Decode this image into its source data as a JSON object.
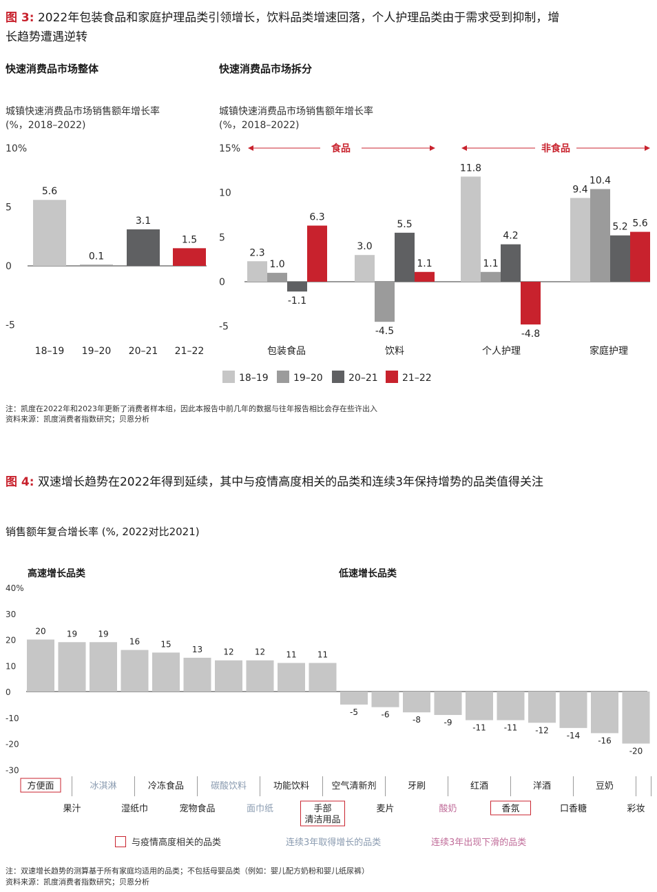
{
  "fig3": {
    "title_num": "图 3:",
    "title_line1": "2022年包装食品和家庭护理品类引领增长，饮料品类增速回落，个人护理品类由于需求受到抑制，增",
    "title_line2": "长趋势遭遇逆转",
    "left_heading": "快速消费品市场整体",
    "right_heading": "快速消费品市场拆分",
    "left_ylabel1": "城镇快速消费品市场销售额年增长率",
    "left_ylabel2": "(%，2018–2022)",
    "right_ylabel1": "城镇快速消费品市场销售额年增长率",
    "right_ylabel2": "(%，2018–2022)",
    "note": "注：凯度在2022年和2023年更新了消费者样本组，因此本报告中前几年的数据与往年报告相比会存在些许出入",
    "source": "资料来源：凯度消费者指数研究；贝恩分析"
  },
  "fig4": {
    "title_num": "图 4:",
    "title": "双速增长趋势在2022年得到延续，其中与疫情高度相关的品类和连续3年保持增势的品类值得关注",
    "subtitle": "销售额年复合增长率 (%, 2022对比2021)",
    "high_heading": "高速增长品类",
    "low_heading": "低速增长品类",
    "legend": [
      {
        "label": "与疫情高度相关的品类",
        "color": "#c8222d"
      },
      {
        "label": "连续3年取得增长的品类",
        "color": "#8a9bb0"
      },
      {
        "label": "连续3年出现下滑的品类",
        "color": "#c06c99"
      }
    ],
    "note": "注：双速增长趋势的测算基于所有家庭均适用的品类；不包括母婴品类（例如：婴儿配方奶粉和婴儿纸尿裤）",
    "source": "资料来源：凯度消费者指数研究；贝恩分析"
  },
  "chart_data": [
    {
      "type": "bar",
      "categories": [
        "18–19",
        "19–20",
        "20–21",
        "21–22"
      ],
      "values": [
        5.6,
        0.1,
        3.1,
        1.5
      ],
      "value_labels": [
        "5.6",
        "0.1",
        "3.1",
        "1.5"
      ],
      "colors": [
        "#c6c6c6",
        "#9b9b9b",
        "#5f6062",
        "#c8222d"
      ],
      "ylim": [
        -5,
        10
      ],
      "yticks": [
        {
          "v": 10,
          "t": "10%"
        },
        {
          "v": 5,
          "t": "5"
        },
        {
          "v": 0,
          "t": "0"
        },
        {
          "v": -5,
          "t": "-5"
        }
      ]
    },
    {
      "type": "bar",
      "categories": [
        "包装食品",
        "饮料",
        "个人护理",
        "家庭护理"
      ],
      "series": [
        {
          "name": "18–19",
          "values": [
            2.3,
            3.0,
            11.8,
            9.4
          ],
          "labels": [
            "2.3",
            "3.0",
            "11.8",
            "9.4"
          ],
          "color": "#c6c6c6"
        },
        {
          "name": "19–20",
          "values": [
            1.0,
            -4.5,
            1.1,
            10.4
          ],
          "labels": [
            "1.0",
            "-4.5",
            "1.1",
            "10.4"
          ],
          "color": "#9b9b9b"
        },
        {
          "name": "20–21",
          "values": [
            -1.1,
            5.5,
            4.2,
            5.2
          ],
          "labels": [
            "-1.1",
            "5.5",
            "4.2",
            "5.2"
          ],
          "color": "#5f6062"
        },
        {
          "name": "21–22",
          "values": [
            6.3,
            1.1,
            -4.8,
            5.6
          ],
          "labels": [
            "6.3",
            "1.1",
            "-4.8",
            "5.6"
          ],
          "color": "#c8222d"
        }
      ],
      "group_labels": [
        "食品",
        "非食品"
      ],
      "ylim": [
        -5,
        15
      ],
      "yticks": [
        {
          "v": 15,
          "t": "15%"
        },
        {
          "v": 10,
          "t": "10"
        },
        {
          "v": 5,
          "t": "5"
        },
        {
          "v": 0,
          "t": "0"
        },
        {
          "v": -5,
          "t": "-5"
        }
      ]
    },
    {
      "type": "bar",
      "categories": [
        "方便面",
        "果汁",
        "冰淇淋",
        "湿纸巾",
        "冷冻食品",
        "宠物食品",
        "碳酸饮料",
        "面巾纸",
        "功能饮料",
        "手部\n清洁用品",
        "空气清新剂",
        "麦片",
        "牙刷",
        "酸奶",
        "红酒",
        "香氛",
        "洋酒",
        "口香糖",
        "豆奶",
        "彩妆"
      ],
      "values": [
        20,
        19,
        19,
        16,
        15,
        13,
        12,
        12,
        11,
        11,
        -5,
        -6,
        -8,
        -9,
        -11,
        -11,
        -12,
        -14,
        -16,
        -20
      ],
      "value_labels": [
        "20",
        "19",
        "19",
        "16",
        "15",
        "13",
        "12",
        "12",
        "11",
        "11",
        "-5",
        "-6",
        "-8",
        "-9",
        "-11",
        "-11",
        "-12",
        "-14",
        "-16",
        "-20"
      ],
      "label_styles": [
        "box",
        "",
        "blue",
        "",
        "",
        "",
        "blue",
        "blue",
        "",
        "box",
        "",
        "",
        "",
        "pink",
        "",
        "box",
        "",
        "",
        "",
        ""
      ],
      "ylim": [
        -30,
        40
      ],
      "yticks": [
        {
          "v": 40,
          "t": "40%"
        },
        {
          "v": 30,
          "t": "30"
        },
        {
          "v": 20,
          "t": "20"
        },
        {
          "v": 10,
          "t": "10"
        },
        {
          "v": 0,
          "t": "0"
        },
        {
          "v": -10,
          "t": "-10"
        },
        {
          "v": -20,
          "t": "-20"
        },
        {
          "v": -30,
          "t": "-30"
        }
      ]
    }
  ]
}
